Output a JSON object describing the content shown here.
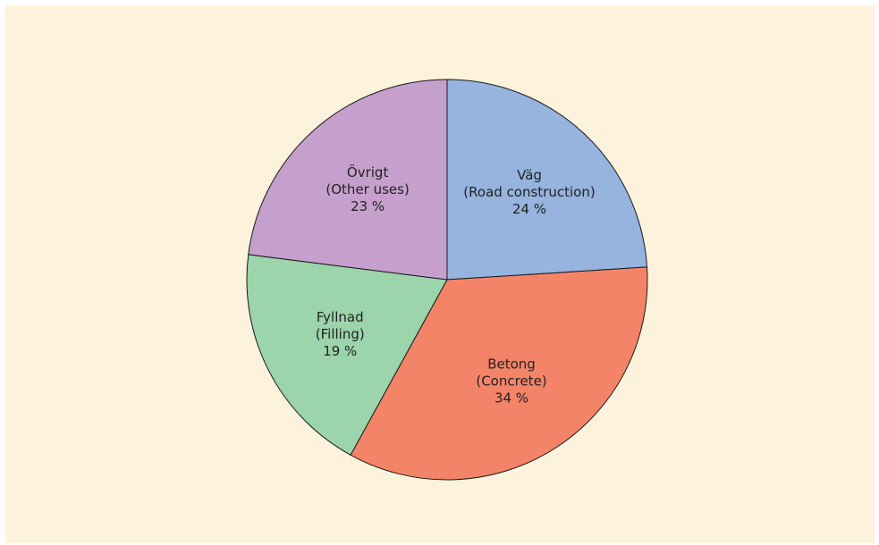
{
  "chart_data": {
    "type": "pie",
    "slices": [
      {
        "name": "Väg",
        "sub": "(Road construction)",
        "pct_label": "24 %",
        "value": 24,
        "color": "#96b4de"
      },
      {
        "name": "Betong",
        "sub": "(Concrete)",
        "pct_label": "34 %",
        "value": 34,
        "color": "#f48468"
      },
      {
        "name": "Fyllnad",
        "sub": "(Filling)",
        "pct_label": "19 %",
        "value": 19,
        "color": "#9cd4ac"
      },
      {
        "name": "Övrigt",
        "sub": "(Other uses)",
        "pct_label": "23 %",
        "value": 23,
        "color": "#c6a0cc"
      }
    ],
    "start": "12 o'clock",
    "direction": "clockwise"
  },
  "colors": {
    "background": "#fdf3dc",
    "outline": "#1a1a1a"
  }
}
